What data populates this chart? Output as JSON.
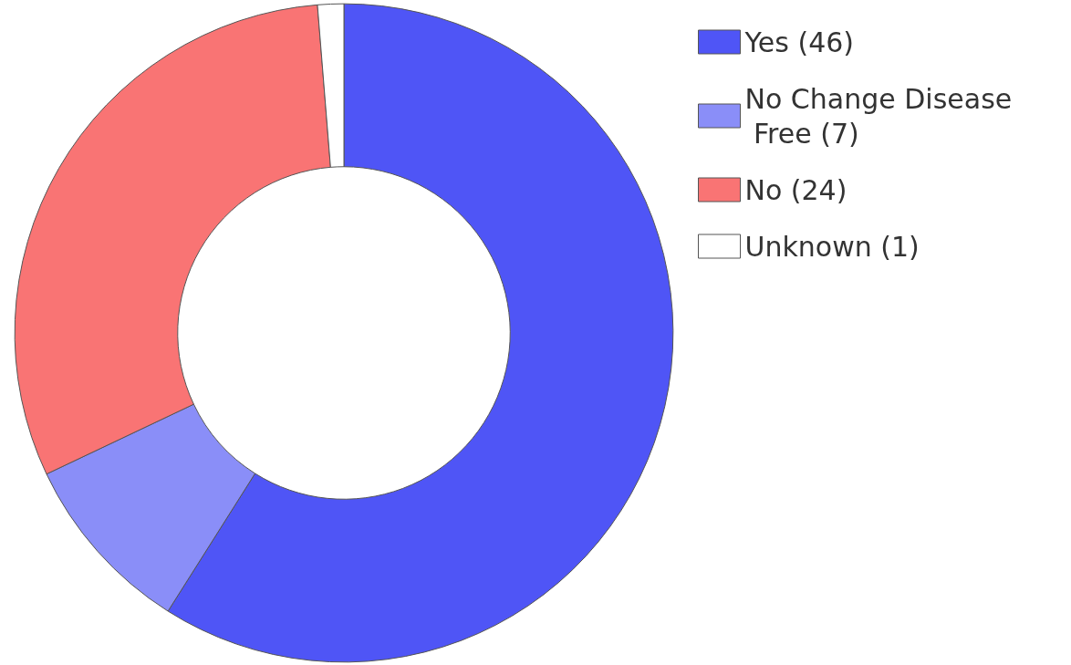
{
  "chart_data": {
    "type": "donut",
    "categories": [
      "Yes (46)",
      "No Change Disease Free (7)",
      "No (24)",
      "Unknown (1)"
    ],
    "values": [
      46,
      7,
      24,
      1
    ],
    "colors": [
      "#4f55f6",
      "#8a8ef8",
      "#f97474",
      "#ffffff"
    ],
    "legend": "top right"
  }
}
